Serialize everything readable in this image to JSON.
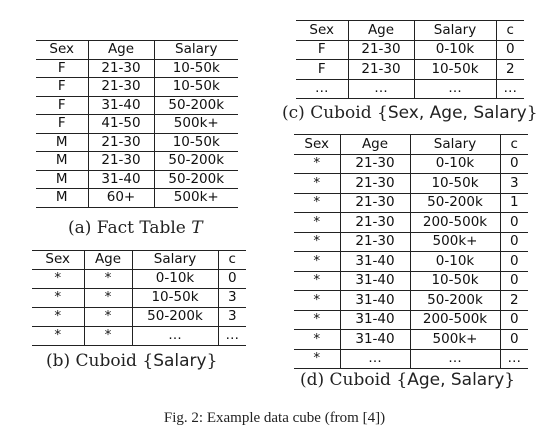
{
  "tables": {
    "a": {
      "headers": [
        "Sex",
        "Age",
        "Salary"
      ],
      "rows": [
        [
          "F",
          "21-30",
          "10-50k"
        ],
        [
          "F",
          "21-30",
          "10-50k"
        ],
        [
          "F",
          "31-40",
          "50-200k"
        ],
        [
          "F",
          "41-50",
          "500k+"
        ],
        [
          "M",
          "21-30",
          "10-50k"
        ],
        [
          "M",
          "21-30",
          "50-200k"
        ],
        [
          "M",
          "31-40",
          "50-200k"
        ],
        [
          "M",
          "60+",
          "500k+"
        ]
      ],
      "caption": {
        "prefix": "(a) Fact Table",
        "symbol": "T"
      }
    },
    "b": {
      "headers": [
        "Sex",
        "Age",
        "Salary",
        "c"
      ],
      "rows": [
        [
          "*",
          "*",
          "0-10k",
          "0"
        ],
        [
          "*",
          "*",
          "10-50k",
          "3"
        ],
        [
          "*",
          "*",
          "50-200k",
          "3"
        ],
        [
          "*",
          "*",
          "…",
          "…"
        ]
      ],
      "caption": {
        "prefix": "(b) Cuboid",
        "open": "{",
        "attrs": "Salary",
        "close": "}"
      }
    },
    "c": {
      "headers": [
        "Sex",
        "Age",
        "Salary",
        "c"
      ],
      "rows": [
        [
          "F",
          "21-30",
          "0-10k",
          "0"
        ],
        [
          "F",
          "21-30",
          "10-50k",
          "2"
        ],
        [
          "…",
          "…",
          "…",
          "…"
        ]
      ],
      "caption": {
        "prefix": "(c) Cuboid",
        "open": "{",
        "attrs": "Sex, Age, Salary",
        "close": "}"
      }
    },
    "d": {
      "headers": [
        "Sex",
        "Age",
        "Salary",
        "c"
      ],
      "rows": [
        [
          "*",
          "21-30",
          "0-10k",
          "0"
        ],
        [
          "*",
          "21-30",
          "10-50k",
          "3"
        ],
        [
          "*",
          "21-30",
          "50-200k",
          "1"
        ],
        [
          "*",
          "21-30",
          "200-500k",
          "0"
        ],
        [
          "*",
          "21-30",
          "500k+",
          "0"
        ],
        [
          "*",
          "31-40",
          "0-10k",
          "0"
        ],
        [
          "*",
          "31-40",
          "10-50k",
          "0"
        ],
        [
          "*",
          "31-40",
          "50-200k",
          "2"
        ],
        [
          "*",
          "31-40",
          "200-500k",
          "0"
        ],
        [
          "*",
          "31-40",
          "500k+",
          "0"
        ],
        [
          "*",
          "…",
          "…",
          "…"
        ]
      ],
      "caption": {
        "prefix": "(d) Cuboid",
        "open": "{",
        "attrs": "Age, Salary",
        "close": "}"
      }
    }
  },
  "figure_caption": "Fig. 2: Example data cube (from [4])"
}
